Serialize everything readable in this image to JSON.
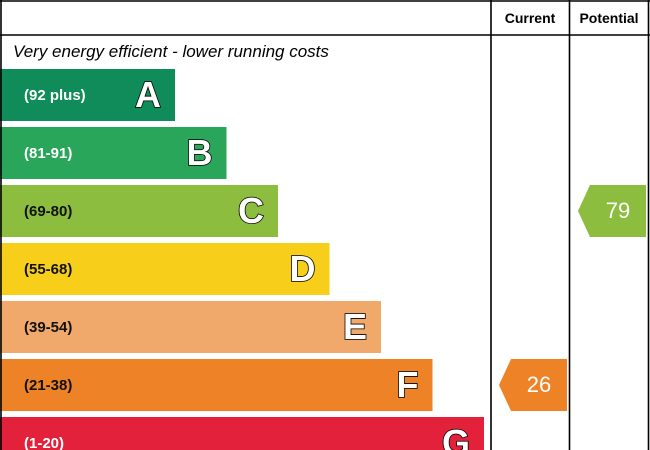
{
  "columns": {
    "current": "Current",
    "potential": "Potential"
  },
  "subtitle": "Very energy efficient - lower running costs",
  "chart_data": {
    "type": "bar",
    "categories": [
      "A",
      "B",
      "C",
      "D",
      "E",
      "F",
      "G"
    ],
    "range_labels": [
      "(92 plus)",
      "(81-91)",
      "(69-80)",
      "(55-68)",
      "(39-54)",
      "(21-38)",
      "(1-20)"
    ],
    "colors": [
      "#0f8c5a",
      "#2aa65a",
      "#8cbd3e",
      "#f7cf1b",
      "#f1a96b",
      "#ee8226",
      "#e4213b"
    ],
    "current": {
      "value": 26,
      "band": "F",
      "color": "#ee8226"
    },
    "potential": {
      "value": 79,
      "band": "C",
      "color": "#8cbd3e"
    }
  }
}
